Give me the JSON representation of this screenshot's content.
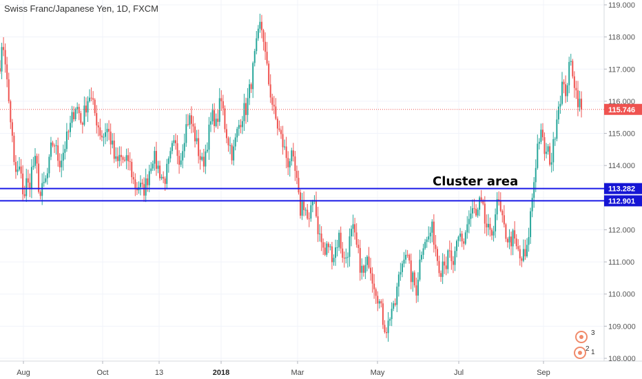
{
  "chart_data": {
    "type": "candlestick",
    "title": "Swiss Franc/Japanese Yen, 1D, FXCM",
    "ylim": [
      108.0,
      119.0
    ],
    "y_ticks": [
      "108.000",
      "109.000",
      "110.000",
      "111.000",
      "112.000",
      "113.000",
      "114.000",
      "115.000",
      "116.000",
      "117.000",
      "118.000",
      "119.000"
    ],
    "x_ticks": [
      {
        "label": "Aug",
        "bold": false
      },
      {
        "label": "Oct",
        "bold": false
      },
      {
        "label": "13",
        "bold": false
      },
      {
        "label": "2018",
        "bold": true
      },
      {
        "label": "Mar",
        "bold": false
      },
      {
        "label": "May",
        "bold": false
      },
      {
        "label": "Jul",
        "bold": false
      },
      {
        "label": "Sep",
        "bold": false
      }
    ],
    "anchors": [
      [
        0,
        117.2
      ],
      [
        3,
        117.5
      ],
      [
        6,
        117.8
      ],
      [
        10,
        116.6
      ],
      [
        14,
        115.7
      ],
      [
        17,
        115.1
      ],
      [
        20,
        114.0
      ],
      [
        24,
        113.7
      ],
      [
        28,
        113.9
      ],
      [
        32,
        113.4
      ],
      [
        35,
        113.0
      ],
      [
        38,
        113.5
      ],
      [
        42,
        113.3
      ],
      [
        45,
        113.8
      ],
      [
        50,
        114.1
      ],
      [
        53,
        114.0
      ],
      [
        56,
        113.4
      ],
      [
        59,
        113.0
      ],
      [
        62,
        113.3
      ],
      [
        66,
        113.5
      ],
      [
        70,
        113.8
      ],
      [
        74,
        114.5
      ],
      [
        78,
        114.8
      ],
      [
        82,
        114.4
      ],
      [
        86,
        114.1
      ],
      [
        90,
        114.3
      ],
      [
        94,
        114.6
      ],
      [
        98,
        114.9
      ],
      [
        102,
        115.2
      ],
      [
        106,
        115.6
      ],
      [
        110,
        115.9
      ],
      [
        114,
        115.7
      ],
      [
        118,
        115.3
      ],
      [
        122,
        115.6
      ],
      [
        126,
        116.0
      ],
      [
        130,
        116.2
      ],
      [
        134,
        115.9
      ],
      [
        138,
        115.6
      ],
      [
        142,
        115.3
      ],
      [
        146,
        115.0
      ],
      [
        150,
        114.9
      ],
      [
        154,
        115.2
      ],
      [
        158,
        115.0
      ],
      [
        162,
        114.7
      ],
      [
        166,
        114.2
      ],
      [
        170,
        114.0
      ],
      [
        174,
        114.3
      ],
      [
        178,
        114.2
      ],
      [
        182,
        114.0
      ],
      [
        186,
        114.2
      ],
      [
        190,
        113.9
      ],
      [
        194,
        113.5
      ],
      [
        198,
        113.3
      ],
      [
        202,
        113.4
      ],
      [
        206,
        113.2
      ],
      [
        210,
        113.3
      ],
      [
        214,
        113.6
      ],
      [
        218,
        114.0
      ],
      [
        222,
        114.3
      ],
      [
        226,
        114.1
      ],
      [
        230,
        113.9
      ],
      [
        234,
        113.7
      ],
      [
        238,
        113.5
      ],
      [
        242,
        113.8
      ],
      [
        246,
        114.1
      ],
      [
        250,
        114.5
      ],
      [
        254,
        114.6
      ],
      [
        258,
        114.4
      ],
      [
        262,
        114.2
      ],
      [
        266,
        114.8
      ],
      [
        270,
        115.2
      ],
      [
        274,
        115.5
      ],
      [
        278,
        115.3
      ],
      [
        282,
        115.0
      ],
      [
        286,
        114.6
      ],
      [
        290,
        114.3
      ],
      [
        294,
        114.0
      ],
      [
        298,
        114.4
      ],
      [
        302,
        114.9
      ],
      [
        306,
        115.3
      ],
      [
        310,
        115.6
      ],
      [
        314,
        115.2
      ],
      [
        318,
        115.8
      ],
      [
        322,
        116.0
      ],
      [
        326,
        115.3
      ],
      [
        330,
        114.9
      ],
      [
        334,
        114.6
      ],
      [
        338,
        114.3
      ],
      [
        342,
        114.8
      ],
      [
        346,
        115.2
      ],
      [
        350,
        115.5
      ],
      [
        354,
        115.7
      ],
      [
        358,
        115.8
      ],
      [
        362,
        116.3
      ],
      [
        366,
        116.8
      ],
      [
        370,
        117.4
      ],
      [
        374,
        117.9
      ],
      [
        378,
        118.4
      ],
      [
        382,
        118.1
      ],
      [
        386,
        117.2
      ],
      [
        390,
        116.6
      ],
      [
        394,
        116.1
      ],
      [
        398,
        115.6
      ],
      [
        402,
        115.3
      ],
      [
        406,
        115.0
      ],
      [
        410,
        114.7
      ],
      [
        414,
        114.4
      ],
      [
        418,
        114.1
      ],
      [
        422,
        114.3
      ],
      [
        426,
        114.0
      ],
      [
        430,
        113.6
      ],
      [
        433,
        113.0
      ],
      [
        436,
        112.6
      ],
      [
        440,
        112.9
      ],
      [
        444,
        112.6
      ],
      [
        448,
        112.1
      ],
      [
        452,
        112.6
      ],
      [
        456,
        113.2
      ],
      [
        460,
        112.2
      ],
      [
        464,
        111.8
      ],
      [
        468,
        111.5
      ],
      [
        472,
        111.2
      ],
      [
        476,
        111.6
      ],
      [
        480,
        111.3
      ],
      [
        484,
        111.2
      ],
      [
        488,
        111.5
      ],
      [
        492,
        111.8
      ],
      [
        496,
        111.4
      ],
      [
        500,
        111.0
      ],
      [
        504,
        111.3
      ],
      [
        508,
        111.7
      ],
      [
        512,
        112.0
      ],
      [
        516,
        111.6
      ],
      [
        520,
        111.2
      ],
      [
        524,
        110.8
      ],
      [
        528,
        110.6
      ],
      [
        532,
        110.9
      ],
      [
        536,
        111.1
      ],
      [
        540,
        110.6
      ],
      [
        544,
        110.3
      ],
      [
        548,
        110.0
      ],
      [
        552,
        109.6
      ],
      [
        556,
        109.2
      ],
      [
        560,
        108.9
      ],
      [
        564,
        109.1
      ],
      [
        568,
        109.6
      ],
      [
        572,
        109.4
      ],
      [
        576,
        110.1
      ],
      [
        580,
        110.6
      ],
      [
        584,
        111.0
      ],
      [
        588,
        111.5
      ],
      [
        592,
        111.0
      ],
      [
        596,
        110.6
      ],
      [
        600,
        110.4
      ],
      [
        604,
        110.1
      ],
      [
        608,
        110.8
      ],
      [
        612,
        111.4
      ],
      [
        616,
        111.8
      ],
      [
        620,
        111.6
      ],
      [
        624,
        111.9
      ],
      [
        628,
        112.0
      ],
      [
        632,
        111.5
      ],
      [
        636,
        111.0
      ],
      [
        640,
        110.8
      ],
      [
        644,
        111.2
      ],
      [
        648,
        110.9
      ],
      [
        652,
        111.3
      ],
      [
        656,
        110.8
      ],
      [
        660,
        111.1
      ],
      [
        664,
        111.5
      ],
      [
        668,
        111.8
      ],
      [
        672,
        111.5
      ],
      [
        676,
        112.0
      ],
      [
        680,
        112.3
      ],
      [
        684,
        112.5
      ],
      [
        688,
        112.6
      ],
      [
        692,
        112.3
      ],
      [
        696,
        112.8
      ],
      [
        700,
        112.7
      ],
      [
        704,
        112.2
      ],
      [
        708,
        112.0
      ],
      [
        712,
        111.7
      ],
      [
        716,
        112.1
      ],
      [
        720,
        112.7
      ],
      [
        724,
        112.8
      ],
      [
        728,
        112.3
      ],
      [
        732,
        112.0
      ],
      [
        736,
        111.8
      ],
      [
        740,
        111.6
      ],
      [
        744,
        111.8
      ],
      [
        748,
        111.5
      ],
      [
        752,
        111.3
      ],
      [
        756,
        111.0
      ],
      [
        760,
        111.2
      ],
      [
        764,
        111.1
      ],
      [
        768,
        112.0
      ],
      [
        772,
        112.9
      ],
      [
        776,
        113.7
      ],
      [
        780,
        114.6
      ],
      [
        784,
        115.0
      ],
      [
        788,
        114.7
      ],
      [
        792,
        114.3
      ],
      [
        796,
        114.4
      ],
      [
        800,
        114.1
      ],
      [
        804,
        114.7
      ],
      [
        808,
        115.6
      ],
      [
        812,
        116.0
      ],
      [
        816,
        116.5
      ],
      [
        820,
        116.2
      ],
      [
        824,
        116.7
      ],
      [
        828,
        117.2
      ],
      [
        832,
        116.9
      ],
      [
        836,
        116.3
      ],
      [
        840,
        116.0
      ],
      [
        844,
        115.75
      ]
    ],
    "last_price": "115.746",
    "last_price_value": 115.746,
    "horizontal_lines": [
      {
        "value": 113.282,
        "label": "113.282"
      },
      {
        "value": 112.901,
        "label": "112.901"
      }
    ],
    "annotation": "Cluster area",
    "events": {
      "top": "3",
      "bottom": "2",
      "bottom_extra": "1"
    },
    "colors": {
      "up": "#26a69a",
      "down": "#ef5350",
      "line": "#1a1ae6",
      "last": "#ef5350",
      "grid": "#f0f3fa"
    }
  }
}
